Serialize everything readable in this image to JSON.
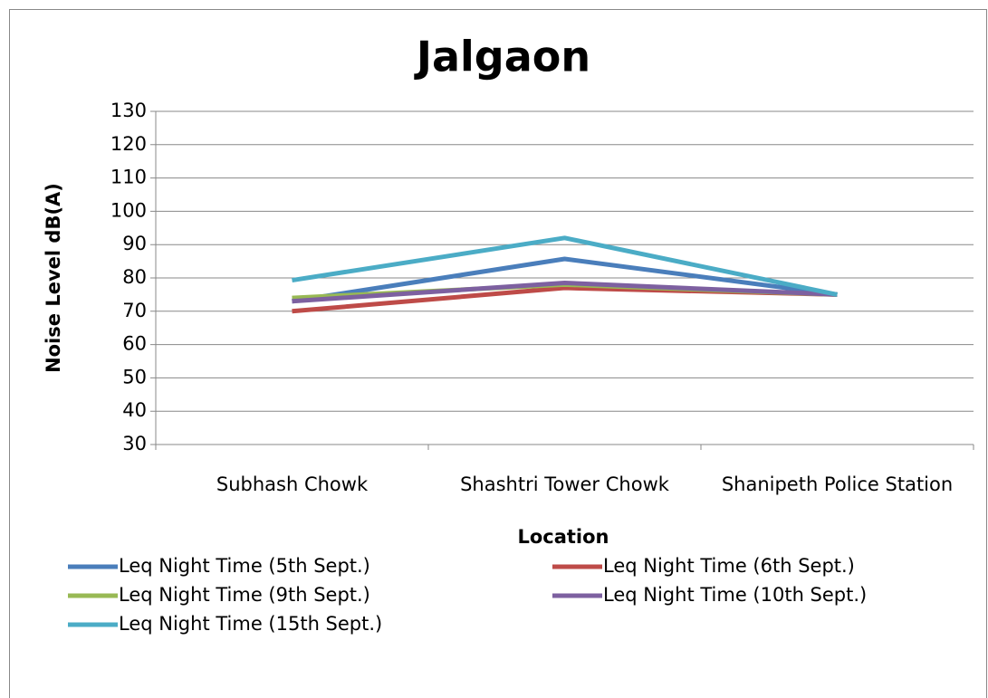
{
  "chart_data": {
    "type": "line",
    "title": "Jalgaon",
    "x_label": "Location",
    "y_label": "Noise Level dB(A)",
    "categories": [
      "Subhash Chowk",
      "Shashtri Tower Chowk",
      "Shanipeth Police Station"
    ],
    "series": [
      {
        "name": "Leq Night Time (5th Sept.)",
        "color": "#4a7ebb",
        "values": [
          73,
          85.7,
          75
        ]
      },
      {
        "name": "Leq Night Time (6th Sept.)",
        "color": "#be4b48",
        "values": [
          70,
          77,
          75
        ]
      },
      {
        "name": "Leq Night Time (9th Sept.)",
        "color": "#98b954",
        "values": [
          74,
          78,
          75
        ]
      },
      {
        "name": "Leq Night Time (10th Sept.)",
        "color": "#7d60a0",
        "values": [
          73,
          78.5,
          75
        ]
      },
      {
        "name": "Leq Night Time (15th Sept.)",
        "color": "#4bacc6",
        "values": [
          79.3,
          92,
          75
        ]
      }
    ],
    "ylim": [
      30,
      130
    ],
    "yticks": [
      30,
      40,
      50,
      60,
      70,
      80,
      90,
      100,
      110,
      120,
      130
    ],
    "grid": true,
    "legend": "bottom"
  }
}
